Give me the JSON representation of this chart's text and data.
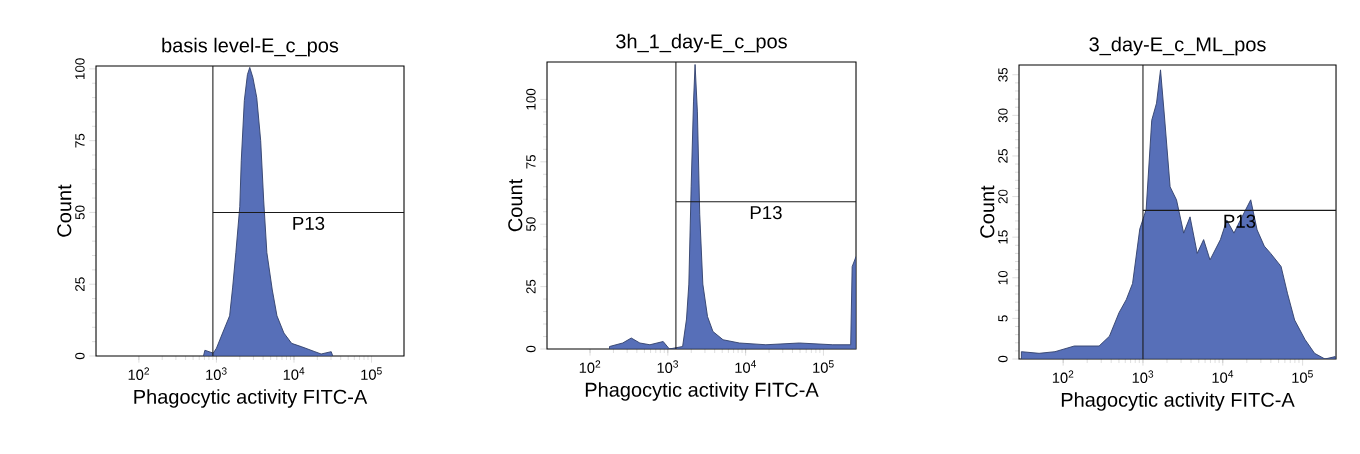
{
  "chart_data": [
    {
      "type": "area",
      "title": "basis level-E_c_pos",
      "xlabel": "Phagocytic activity FITC-A",
      "ylabel": "Count",
      "log": "x",
      "xlim": [
        28,
        262144
      ],
      "ylim": [
        0,
        101
      ],
      "xticks": [
        {
          "value": 100,
          "label": "10$^{2}$"
        },
        {
          "value": 1000,
          "label": "10$^{3}$"
        },
        {
          "value": 10000,
          "label": "10$^{4}$"
        },
        {
          "value": 100000,
          "label": "10$^{5}$"
        }
      ],
      "yticks": [
        0,
        25,
        50,
        75,
        100
      ],
      "series": [
        {
          "color": "#576fb8",
          "x": [
            680,
            710,
            910,
            1000,
            1200,
            1480,
            1620,
            1780,
            2000,
            2090,
            2290,
            2510,
            2690,
            2950,
            3310,
            3720,
            4070,
            4470,
            5250,
            6030,
            7410,
            9330,
            12600,
            18600,
            22400,
            30200,
            31600
          ],
          "values": [
            0,
            2,
            1,
            2.7,
            8,
            14,
            24,
            36,
            52,
            68,
            89,
            98,
            100.5,
            97,
            90,
            75,
            54,
            36,
            23,
            14,
            8,
            4.4,
            3.2,
            1.5,
            0.7,
            1.5,
            0
          ]
        },
        {
          "type": "line",
          "color": "#1a1a1a",
          "x": [
            900,
            262144
          ],
          "values": [
            50,
            50
          ]
        }
      ],
      "ref_lines": [
        {
          "axis": "x",
          "value": 900,
          "color": "#1a1a1a"
        }
      ],
      "annotations": [
        "P13"
      ]
    },
    {
      "type": "area",
      "title": "3h_1_day-E_c_pos",
      "xlabel": "Phagocytic activity FITC-A",
      "ylabel": "Count",
      "log": "x",
      "xlim": [
        28,
        262144
      ],
      "ylim": [
        0,
        115
      ],
      "xticks": [
        {
          "value": 100,
          "label": "10$^{2}$"
        },
        {
          "value": 1000,
          "label": "10$^{3}$"
        },
        {
          "value": 10000,
          "label": "10$^{4}$"
        },
        {
          "value": 100000,
          "label": "10$^{5}$"
        }
      ],
      "yticks": [
        0,
        25,
        50,
        75,
        100
      ],
      "series": [
        {
          "color": "#576fb8",
          "x": [
            178,
            263,
            339,
            437,
            589,
            871,
            1047,
            1549,
            1738,
            1862,
            1995,
            2138,
            2239,
            2399,
            2570,
            2818,
            3236,
            3802,
            5129,
            8318,
            18200,
            49000,
            132000,
            224000,
            234000,
            262144
          ],
          "values": [
            1,
            2.4,
            4.4,
            2.4,
            1.7,
            3,
            0,
            1,
            12,
            26,
            65,
            99,
            114,
            95,
            54,
            26,
            13,
            7,
            3.7,
            2.4,
            1.7,
            2.4,
            1.7,
            1.7,
            33,
            37
          ]
        },
        {
          "type": "line",
          "color": "#1a1a1a",
          "x": [
            1270,
            262144
          ],
          "values": [
            59,
            59
          ]
        }
      ],
      "ref_lines": [
        {
          "axis": "x",
          "value": 1270,
          "color": "#1a1a1a"
        }
      ],
      "annotations": [
        "P13"
      ]
    },
    {
      "type": "area",
      "title": "3_day-E_c_ML_pos",
      "xlabel": "Phagocytic activity FITC-A",
      "ylabel": "Count",
      "log": "x",
      "xlim": [
        28,
        262144
      ],
      "ylim": [
        0,
        36.2
      ],
      "xticks": [
        {
          "value": 100,
          "label": "10$^{2}$"
        },
        {
          "value": 1000,
          "label": "10$^{3}$"
        },
        {
          "value": 10000,
          "label": "10$^{4}$"
        },
        {
          "value": 100000,
          "label": "10$^{5}$"
        }
      ],
      "yticks": [
        0,
        5,
        10,
        15,
        20,
        25,
        30,
        35
      ],
      "series": [
        {
          "color": "#576fb8",
          "x": [
            30,
            50,
            79,
            138,
            282,
            380,
            501,
            617,
            741,
            912,
            1096,
            1288,
            1479,
            1660,
            1862,
            2188,
            2630,
            3236,
            3890,
            4786,
            5754,
            6918,
            9333,
            11220,
            13804,
            16596,
            22387,
            26915,
            33113,
            39811,
            53703,
            64565,
            79433,
            107152,
            141254,
            190546,
            257040
          ],
          "values": [
            0.9,
            0.7,
            0.9,
            1.6,
            1.6,
            2.8,
            5.7,
            7.3,
            9.3,
            16,
            18.4,
            29.4,
            31.5,
            35.6,
            29.8,
            21.2,
            19.6,
            15.5,
            17.5,
            13,
            14.7,
            12.2,
            14.7,
            17.1,
            15.5,
            17.1,
            19.6,
            15.9,
            13.9,
            13,
            11.4,
            8.1,
            4.8,
            2.4,
            0.7,
            0,
            0.3
          ]
        },
        {
          "type": "line",
          "color": "#1a1a1a",
          "x": [
            1000,
            262144
          ],
          "values": [
            18.3,
            18.3
          ]
        }
      ],
      "ref_lines": [
        {
          "axis": "x",
          "value": 1000,
          "color": "#1a1a1a"
        }
      ],
      "annotations": [
        "P13"
      ]
    }
  ]
}
